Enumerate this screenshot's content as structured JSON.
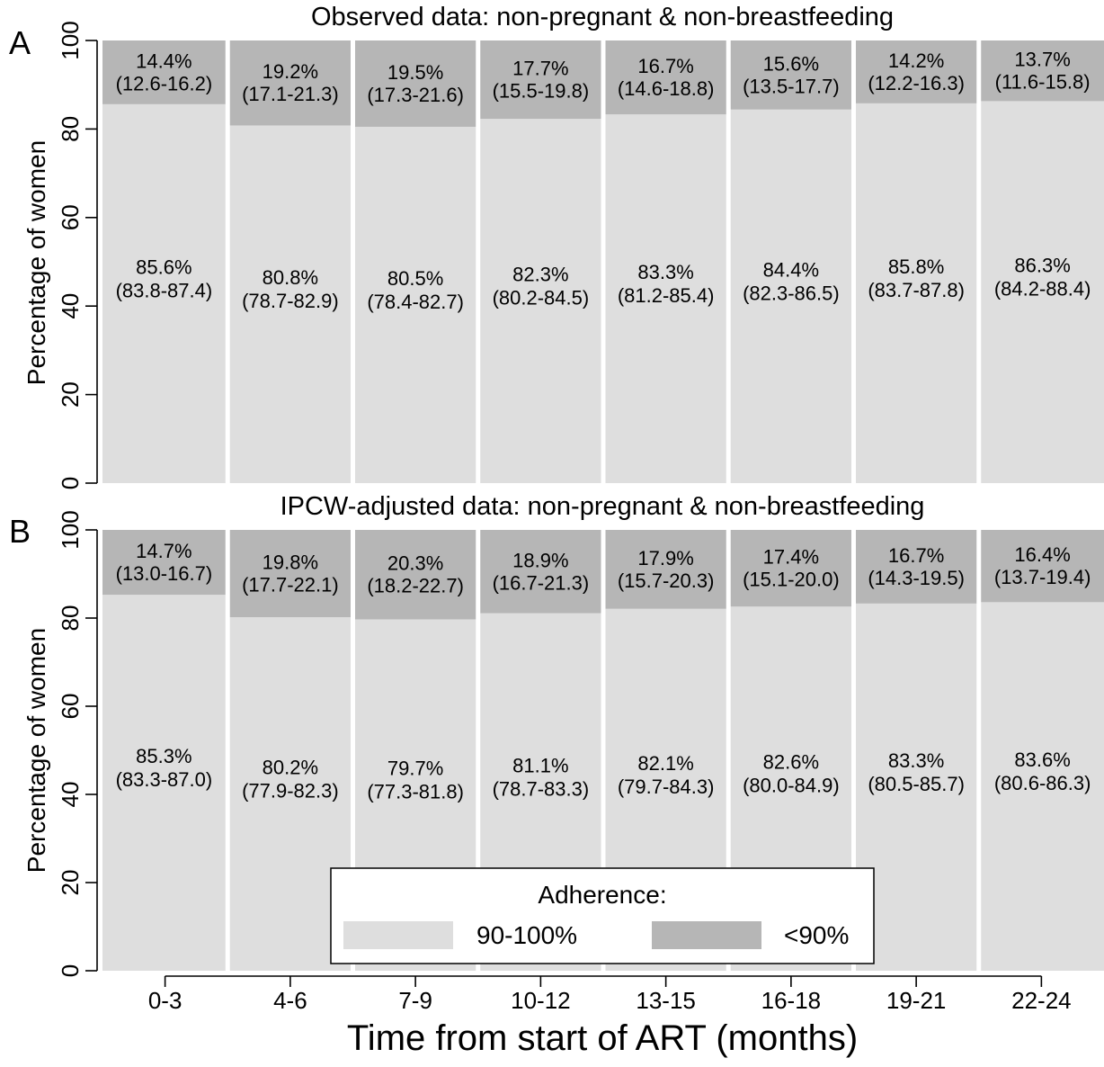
{
  "colors": {
    "high": "#dedede",
    "low": "#b6b6b6",
    "gap": "#ffffff",
    "axis": "#000000"
  },
  "chart_data": [
    {
      "type": "bar",
      "stacked": true,
      "panel_label": "A",
      "title": "Observed data: non-pregnant & non-breastfeeding",
      "ylabel": "Percentage of women",
      "ylim": [
        0,
        100
      ],
      "yticks": [
        0,
        20,
        40,
        60,
        80,
        100
      ],
      "categories": [
        "0-3",
        "4-6",
        "7-9",
        "10-12",
        "13-15",
        "16-18",
        "19-21",
        "22-24"
      ],
      "series": [
        {
          "name": "90-100%",
          "values": [
            85.6,
            80.8,
            80.5,
            82.3,
            83.3,
            84.4,
            85.8,
            86.3
          ],
          "labels": [
            "85.6%",
            "80.8%",
            "80.5%",
            "82.3%",
            "83.3%",
            "84.4%",
            "85.8%",
            "86.3%"
          ],
          "ci": [
            "(83.8-87.4)",
            "(78.7-82.9)",
            "(78.4-82.7)",
            "(80.2-84.5)",
            "(81.2-85.4)",
            "(82.3-86.5)",
            "(83.7-87.8)",
            "(84.2-88.4)"
          ]
        },
        {
          "name": "<90%",
          "values": [
            14.4,
            19.2,
            19.5,
            17.7,
            16.7,
            15.6,
            14.2,
            13.7
          ],
          "labels": [
            "14.4%",
            "19.2%",
            "19.5%",
            "17.7%",
            "16.7%",
            "15.6%",
            "14.2%",
            "13.7%"
          ],
          "ci": [
            "(12.6-16.2)",
            "(17.1-21.3)",
            "(17.3-21.6)",
            "(15.5-19.8)",
            "(14.6-18.8)",
            "(13.5-17.7)",
            "(12.2-16.3)",
            "(11.6-15.8)"
          ]
        }
      ]
    },
    {
      "type": "bar",
      "stacked": true,
      "panel_label": "B",
      "title": "IPCW-adjusted data: non-pregnant & non-breastfeeding",
      "ylabel": "Percentage of women",
      "xlabel": "Time from start of ART (months)",
      "ylim": [
        0,
        100
      ],
      "yticks": [
        0,
        20,
        40,
        60,
        80,
        100
      ],
      "categories": [
        "0-3",
        "4-6",
        "7-9",
        "10-12",
        "13-15",
        "16-18",
        "19-21",
        "22-24"
      ],
      "series": [
        {
          "name": "90-100%",
          "values": [
            85.3,
            80.2,
            79.7,
            81.1,
            82.1,
            82.6,
            83.3,
            83.6
          ],
          "labels": [
            "85.3%",
            "80.2%",
            "79.7%",
            "81.1%",
            "82.1%",
            "82.6%",
            "83.3%",
            "83.6%"
          ],
          "ci": [
            "(83.3-87.0)",
            "(77.9-82.3)",
            "(77.3-81.8)",
            "(78.7-83.3)",
            "(79.7-84.3)",
            "(80.0-84.9)",
            "(80.5-85.7)",
            "(80.6-86.3)"
          ]
        },
        {
          "name": "<90%",
          "values": [
            14.7,
            19.8,
            20.3,
            18.9,
            17.9,
            17.4,
            16.7,
            16.4
          ],
          "labels": [
            "14.7%",
            "19.8%",
            "20.3%",
            "18.9%",
            "17.9%",
            "17.4%",
            "16.7%",
            "16.4%"
          ],
          "ci": [
            "(13.0-16.7)",
            "(17.7-22.1)",
            "(18.2-22.7)",
            "(16.7-21.3)",
            "(15.7-20.3)",
            "(15.1-20.0)",
            "(14.3-19.5)",
            "(13.7-19.4)"
          ]
        }
      ],
      "legend": {
        "title": "Adherence:",
        "placement": "bottom-center",
        "entries": [
          {
            "label": "90-100%"
          },
          {
            "label": "<90%"
          }
        ]
      }
    }
  ]
}
